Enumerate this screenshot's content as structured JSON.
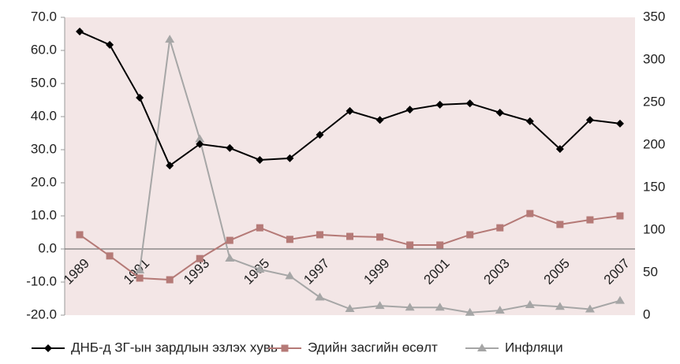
{
  "chart_data": {
    "type": "line",
    "categories": [
      "1989",
      null,
      "1991",
      null,
      "1993",
      null,
      "1995",
      null,
      "1997",
      null,
      "1999",
      null,
      "2001",
      null,
      "2003",
      null,
      "2005",
      null,
      "2007"
    ],
    "series": [
      {
        "name": "ДНБ-д ЗГ-ын зардлын эзлэх хувь",
        "color": "#000000",
        "marker": "diamond",
        "values": [
          65.7,
          61.7,
          45.7,
          25.2,
          31.7,
          30.5,
          26.9,
          27.4,
          34.5,
          41.7,
          39,
          42.1,
          43.6,
          44,
          41.2,
          38.6,
          30.2,
          39,
          37.9
        ]
      },
      {
        "name": "Эдийн засгийн өсөлт",
        "color": "#b57a77",
        "marker": "square",
        "values": [
          4.3,
          -2.1,
          -8.8,
          -9.3,
          -2.9,
          2.6,
          6.4,
          2.9,
          4.3,
          3.8,
          3.6,
          1.2,
          1.2,
          4.3,
          6.4,
          10.7,
          7.4,
          8.8,
          10
        ]
      },
      {
        "name": "Инфляци",
        "color": "#a6a6a6",
        "marker": "triangle",
        "axis": "y2",
        "values": [
          null,
          null,
          52.8,
          324,
          207,
          66.7,
          53.7,
          46,
          21,
          7.4,
          11,
          9,
          9,
          3,
          5.5,
          12,
          10,
          7,
          17
        ]
      }
    ],
    "ylim": [
      -20,
      70
    ],
    "yticks": [
      {
        "value": -20,
        "label": "-20.0"
      },
      {
        "value": -10,
        "label": "-10.0"
      },
      {
        "value": 0,
        "label": "0.0"
      },
      {
        "value": 10,
        "label": "10.0"
      },
      {
        "value": 20,
        "label": "20.0"
      },
      {
        "value": 30,
        "label": "30.0"
      },
      {
        "value": 40,
        "label": "40.0"
      },
      {
        "value": 50,
        "label": "50.0"
      },
      {
        "value": 60,
        "label": "60.0"
      },
      {
        "value": 70,
        "label": "70.0"
      }
    ],
    "y2lim": [
      0,
      350
    ],
    "y2ticks": [
      0,
      50,
      100,
      150,
      200,
      250,
      300,
      350
    ],
    "plot_background": "#f3e6e6",
    "legend": "bottom"
  }
}
